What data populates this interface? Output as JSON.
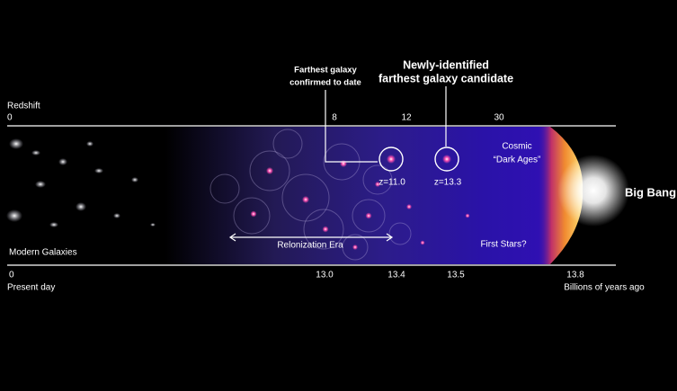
{
  "annotations": {
    "farthest_confirmed": [
      "Farthest galaxy",
      "confirmed to date"
    ],
    "new_candidate": [
      "Newly-identified",
      "farthest galaxy candidate"
    ]
  },
  "redshift_axis": {
    "title": "Redshift",
    "ticks": [
      "0",
      "8",
      "12",
      "30"
    ]
  },
  "time_axis": {
    "ticks": [
      "0",
      "13.0",
      "13.4",
      "13.5",
      "13.8"
    ],
    "start_label": "Present day",
    "end_label": "Billions of years ago"
  },
  "galaxies": [
    {
      "label": "z=11.0"
    },
    {
      "label": "z=13.3"
    }
  ],
  "regions": {
    "modern": "Modern Galaxies",
    "reionization": "Relonization Era",
    "dark_ages": [
      "Cosmic",
      "“Dark Ages”"
    ],
    "first_stars": "First Stars?",
    "big_bang": "Big Bang"
  }
}
